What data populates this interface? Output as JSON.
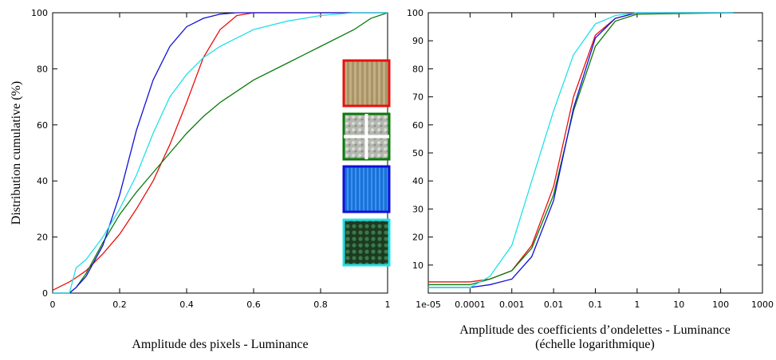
{
  "chart_data": [
    {
      "type": "line",
      "ylabel": "Distribution cumulative (%)",
      "xlabel": [
        "Amplitude des pixels - Luminance"
      ],
      "x": [
        0,
        0.05,
        0.07,
        0.1,
        0.15,
        0.2,
        0.25,
        0.3,
        0.35,
        0.4,
        0.45,
        0.5,
        0.55,
        0.6,
        0.7,
        0.8,
        0.9,
        0.95,
        1
      ],
      "xlim": [
        0,
        1
      ],
      "xticks": [
        0,
        0.2,
        0.4,
        0.6,
        0.8,
        1
      ],
      "ylim": [
        0,
        100
      ],
      "yticks": [
        0,
        20,
        40,
        60,
        80,
        100
      ],
      "xscale": "linear",
      "series": [
        {
          "color": "#e8100e",
          "values": [
            1,
            4,
            5.5,
            8,
            14,
            21,
            30,
            40,
            53,
            68,
            84,
            94,
            99,
            100,
            100,
            100,
            100,
            100,
            100
          ]
        },
        {
          "color": "#0a7a0a",
          "values": [
            0,
            0,
            2,
            7,
            18,
            28,
            36,
            43,
            50,
            57,
            63,
            68,
            72,
            76,
            82,
            88,
            94,
            98,
            100
          ]
        },
        {
          "color": "#1010d8",
          "values": [
            0,
            0,
            2,
            6,
            17,
            35,
            58,
            76,
            88,
            95,
            98,
            99.5,
            100,
            100,
            100,
            100,
            100,
            100,
            100
          ]
        },
        {
          "color": "#22e0e8",
          "values": [
            0,
            0,
            9,
            12,
            20,
            30,
            42,
            57,
            70,
            78,
            84,
            88,
            91,
            94,
            97,
            99,
            100,
            100,
            100
          ]
        }
      ]
    },
    {
      "type": "line",
      "xlabel": [
        "Amplitude des coefficients d’ondelettes - Luminance",
        "(échelle logarithmique)"
      ],
      "x": [
        1e-05,
        0.0001,
        0.0003,
        0.001,
        0.003,
        0.01,
        0.03,
        0.1,
        0.3,
        1,
        200
      ],
      "xlim": [
        1e-05,
        1000
      ],
      "xticks": [
        {
          "value": 1e-05,
          "label": "1e-05"
        },
        0.0001,
        0.001,
        0.01,
        0.1,
        1,
        10,
        100,
        1000
      ],
      "ylim": [
        0,
        100
      ],
      "yticks": [
        10,
        20,
        30,
        40,
        50,
        60,
        70,
        80,
        90,
        100
      ],
      "xscale": "log",
      "series": [
        {
          "color": "#e8100e",
          "values": [
            4,
            4,
            5,
            8,
            17,
            38,
            70,
            92,
            98,
            100,
            100
          ]
        },
        {
          "color": "#0a7a0a",
          "values": [
            3,
            3,
            5,
            8,
            16,
            35,
            65,
            88,
            97,
            99.5,
            100
          ]
        },
        {
          "color": "#1010d8",
          "values": [
            2,
            2,
            3,
            5,
            13,
            33,
            66,
            91,
            98,
            100,
            100
          ]
        },
        {
          "color": "#22e0e8",
          "values": [
            2,
            2,
            6,
            17,
            40,
            65,
            85,
            96,
            99,
            100,
            100
          ]
        }
      ]
    }
  ]
}
